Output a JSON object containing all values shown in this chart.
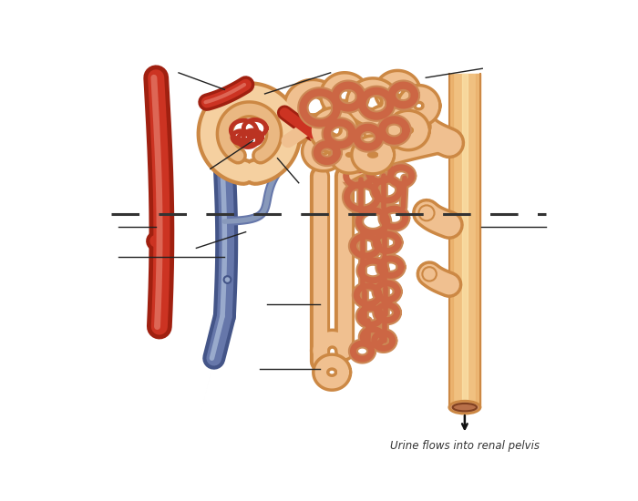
{
  "bg_color": "#ffffff",
  "artery_color": "#cc3322",
  "artery_light": "#dd6655",
  "vein_color": "#6677aa",
  "vein_light": "#99aacc",
  "tubule_fill": "#f0c090",
  "tubule_outline": "#cc8844",
  "capillary_color": "#cc6644",
  "capillary_outline": "#cc8855",
  "bowman_outer": "#f5d0a0",
  "bowman_mid": "#eab882",
  "bowman_inner": "#e8c0a0",
  "glom_color": "#cc4433",
  "duct_fill": "#f0c080",
  "duct_outline": "#cc8844",
  "dash_color": "#333333",
  "label_color": "#222222",
  "arrow_color": "#111111",
  "bottom_text": "Urine flows into renal pelvis"
}
